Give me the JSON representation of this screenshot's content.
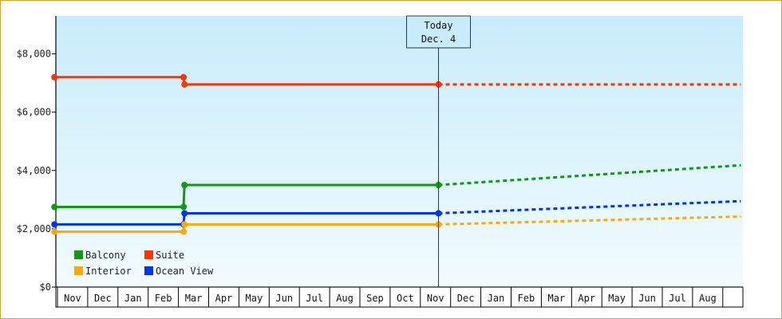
{
  "chart_data": {
    "type": "line",
    "title": "",
    "xlabel": "",
    "ylabel": "",
    "ylim": [
      0,
      9300
    ],
    "y_ticks": [
      0,
      2000,
      4000,
      6000,
      8000
    ],
    "y_tick_labels": [
      "$0",
      "$2,000",
      "$4,000",
      "$6,000",
      "$8,000"
    ],
    "x_tick_labels": [
      "Nov",
      "Dec",
      "Jan",
      "Feb",
      "Mar",
      "Apr",
      "May",
      "Jun",
      "Jul",
      "Aug",
      "Sep",
      "Oct",
      "Nov",
      "Dec",
      "Jan",
      "Feb",
      "Mar",
      "Apr",
      "May",
      "Jun",
      "Jul",
      "Aug"
    ],
    "today_marker": {
      "line1": "Today",
      "line2": "Dec. 4",
      "x": 12.6
    },
    "grid": false,
    "legend_position": "bottom-left",
    "series": [
      {
        "name": "Suite",
        "color": "#ff3300",
        "history": [
          [
            -0.1,
            7200
          ],
          [
            4.17,
            7200
          ],
          [
            4.2,
            6950
          ],
          [
            12.6,
            6950
          ]
        ],
        "markers": [
          [
            -0.1,
            7200
          ],
          [
            4.17,
            7200
          ],
          [
            4.2,
            6950
          ],
          [
            12.6,
            6950
          ]
        ],
        "forecast": [
          [
            12.6,
            6950
          ],
          [
            22.6,
            6950
          ]
        ]
      },
      {
        "name": "Balcony",
        "color": "#119911",
        "history": [
          [
            -0.1,
            2750
          ],
          [
            4.17,
            2750
          ],
          [
            4.2,
            3500
          ],
          [
            12.6,
            3500
          ]
        ],
        "markers": [
          [
            -0.1,
            2750
          ],
          [
            4.17,
            2750
          ],
          [
            4.2,
            3500
          ],
          [
            12.6,
            3500
          ]
        ],
        "forecast": [
          [
            12.6,
            3500
          ],
          [
            22.6,
            4180
          ]
        ]
      },
      {
        "name": "Ocean View",
        "color": "#0033ee",
        "history": [
          [
            -0.1,
            2150
          ],
          [
            4.17,
            2150
          ],
          [
            4.2,
            2530
          ],
          [
            12.6,
            2530
          ]
        ],
        "markers": [
          [
            -0.1,
            2150
          ],
          [
            4.17,
            2150
          ],
          [
            4.2,
            2530
          ],
          [
            12.6,
            2530
          ]
        ],
        "forecast": [
          [
            12.6,
            2530
          ],
          [
            22.6,
            2950
          ]
        ]
      },
      {
        "name": "Interior",
        "color": "#ffaa00",
        "history": [
          [
            -0.1,
            1900
          ],
          [
            4.17,
            1900
          ],
          [
            4.2,
            2150
          ],
          [
            12.6,
            2150
          ]
        ],
        "markers": [
          [
            -0.1,
            1900
          ],
          [
            4.17,
            1900
          ],
          [
            4.2,
            2150
          ],
          [
            12.6,
            2150
          ]
        ],
        "forecast": [
          [
            12.6,
            2150
          ],
          [
            22.6,
            2420
          ]
        ]
      }
    ],
    "legend": [
      {
        "name": "Balcony",
        "color": "#119911"
      },
      {
        "name": "Suite",
        "color": "#ff3300"
      },
      {
        "name": "Interior",
        "color": "#ffaa00"
      },
      {
        "name": "Ocean View",
        "color": "#0033ee"
      }
    ]
  }
}
